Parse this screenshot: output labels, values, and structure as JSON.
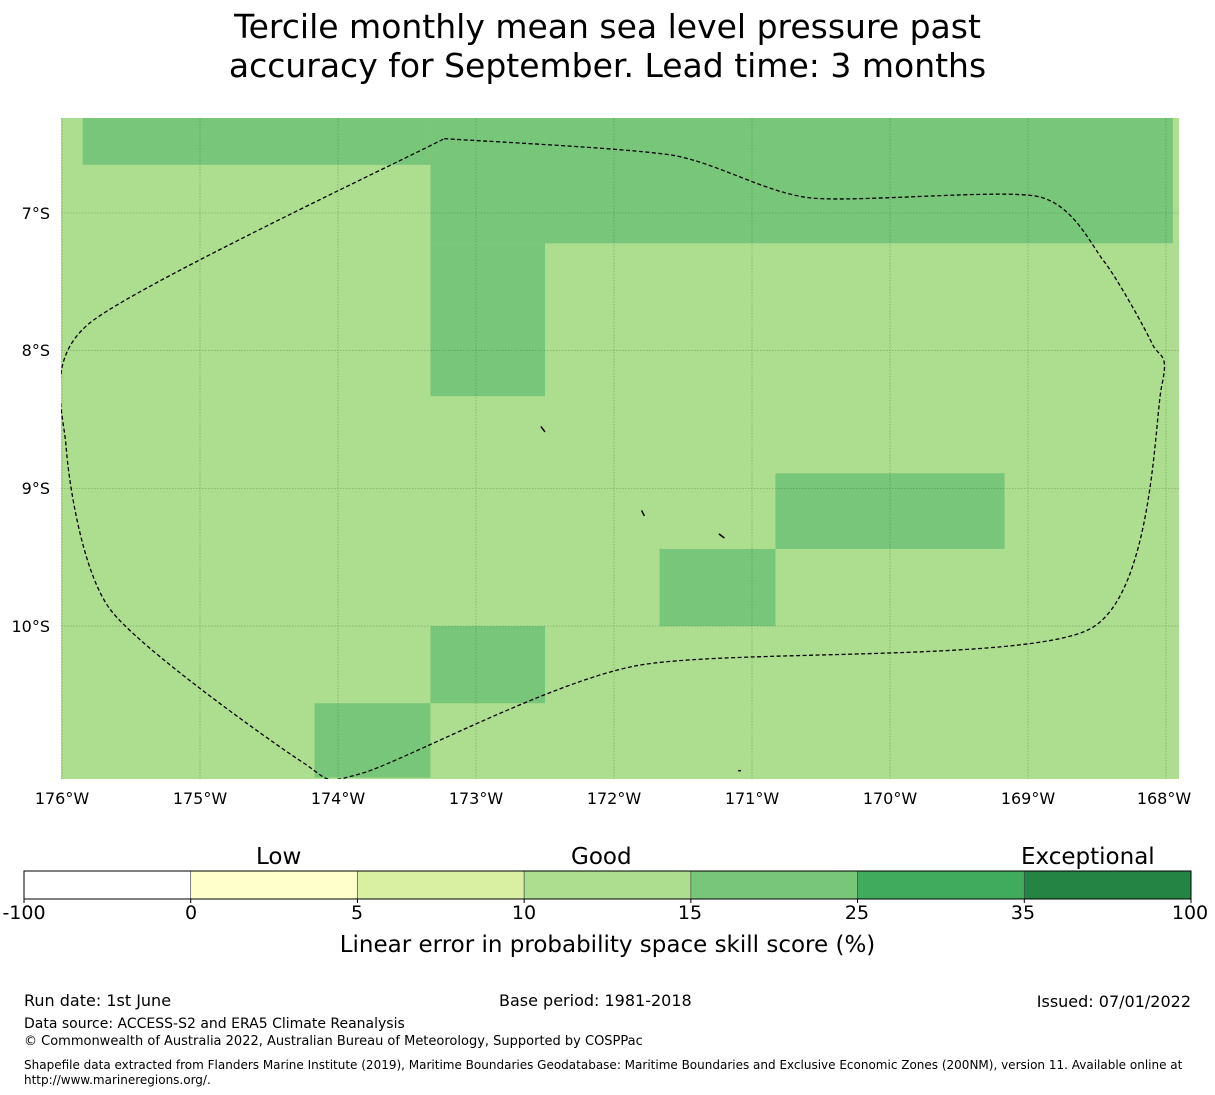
{
  "title": {
    "line1": "Tercile monthly mean sea level pressure past",
    "line2": "accuracy for September. Lead time: 3 months"
  },
  "map": {
    "lat_labels": [
      "7°S",
      "8°S",
      "9°S",
      "10°S"
    ],
    "lon_labels": [
      "176°W",
      "175°W",
      "174°W",
      "173°W",
      "172°W",
      "171°W",
      "170°W",
      "169°W",
      "168°W"
    ],
    "background_category": "10-15",
    "cells_15_25": [
      {
        "lon": [
          -175.85,
          -173.33
        ],
        "lat": [
          -6.28,
          -6.65
        ]
      },
      {
        "lon": [
          -173.33,
          -167.95
        ],
        "lat": [
          -6.28,
          -7.22
        ]
      },
      {
        "lon": [
          -173.33,
          -172.5
        ],
        "lat": [
          -7.22,
          -8.33
        ]
      },
      {
        "lon": [
          -170.83,
          -169.17
        ],
        "lat": [
          -8.89,
          -9.44
        ]
      },
      {
        "lon": [
          -171.67,
          -170.83
        ],
        "lat": [
          -9.44,
          -10.0
        ]
      },
      {
        "lon": [
          -173.33,
          -172.5
        ],
        "lat": [
          -10.0,
          -10.56
        ]
      },
      {
        "lon": [
          -174.17,
          -173.33
        ],
        "lat": [
          -10.56,
          -11.1
        ]
      }
    ],
    "eez_boundary": [
      [
        -173.23,
        -6.46
      ],
      [
        -171.58,
        -6.58
      ],
      [
        -170.58,
        -6.89
      ],
      [
        -168.93,
        -6.88
      ],
      [
        -168.45,
        -7.35
      ],
      [
        -168.1,
        -7.95
      ],
      [
        -168.03,
        -8.25
      ],
      [
        -168.55,
        -10.02
      ],
      [
        -171.85,
        -10.29
      ],
      [
        -173.83,
        -11.07
      ],
      [
        -174.27,
        -10.98
      ],
      [
        -175.65,
        -9.88
      ],
      [
        -175.97,
        -8.7
      ],
      [
        -175.8,
        -7.8
      ],
      [
        -173.23,
        -6.46
      ]
    ],
    "islands": [
      [
        [
          -172.53,
          -8.55
        ],
        [
          -172.5,
          -8.59
        ]
      ],
      [
        [
          -171.8,
          -9.16
        ],
        [
          -171.78,
          -9.2
        ]
      ],
      [
        [
          -171.24,
          -9.33
        ],
        [
          -171.2,
          -9.36
        ]
      ],
      [
        [
          -171.1,
          -11.05
        ],
        [
          -171.08,
          -11.05
        ]
      ]
    ]
  },
  "colorbar": {
    "categories": [
      "Low",
      "Good",
      "Exceptional"
    ],
    "ticks": [
      "-100",
      "0",
      "5",
      "10",
      "15",
      "25",
      "35",
      "100"
    ],
    "colors": [
      "#ffffff",
      "#ffffcc",
      "#d9f0a3",
      "#addd8e",
      "#78c679",
      "#41ab5d",
      "#238443"
    ],
    "label": "Linear error in probability space skill score (%)"
  },
  "footer": {
    "run_date": "Run date: 1st June",
    "base_period": "Base period: 1981-2018",
    "issued": "Issued: 07/01/2022",
    "data_source": "Data source: ACCESS-S2 and ERA5 Climate Reanalysis",
    "copyright": "© Commonwealth of Australia 2022, Australian Bureau of Meteorology, Supported by COSPPac",
    "shapefile": "Shapefile data extracted from Flanders Marine Institute (2019), Maritime Boundaries Geodatabase: Maritime Boundaries and Exclusive Economic Zones (200NM), version 11. Available online at http://www.marineregions.org/."
  }
}
